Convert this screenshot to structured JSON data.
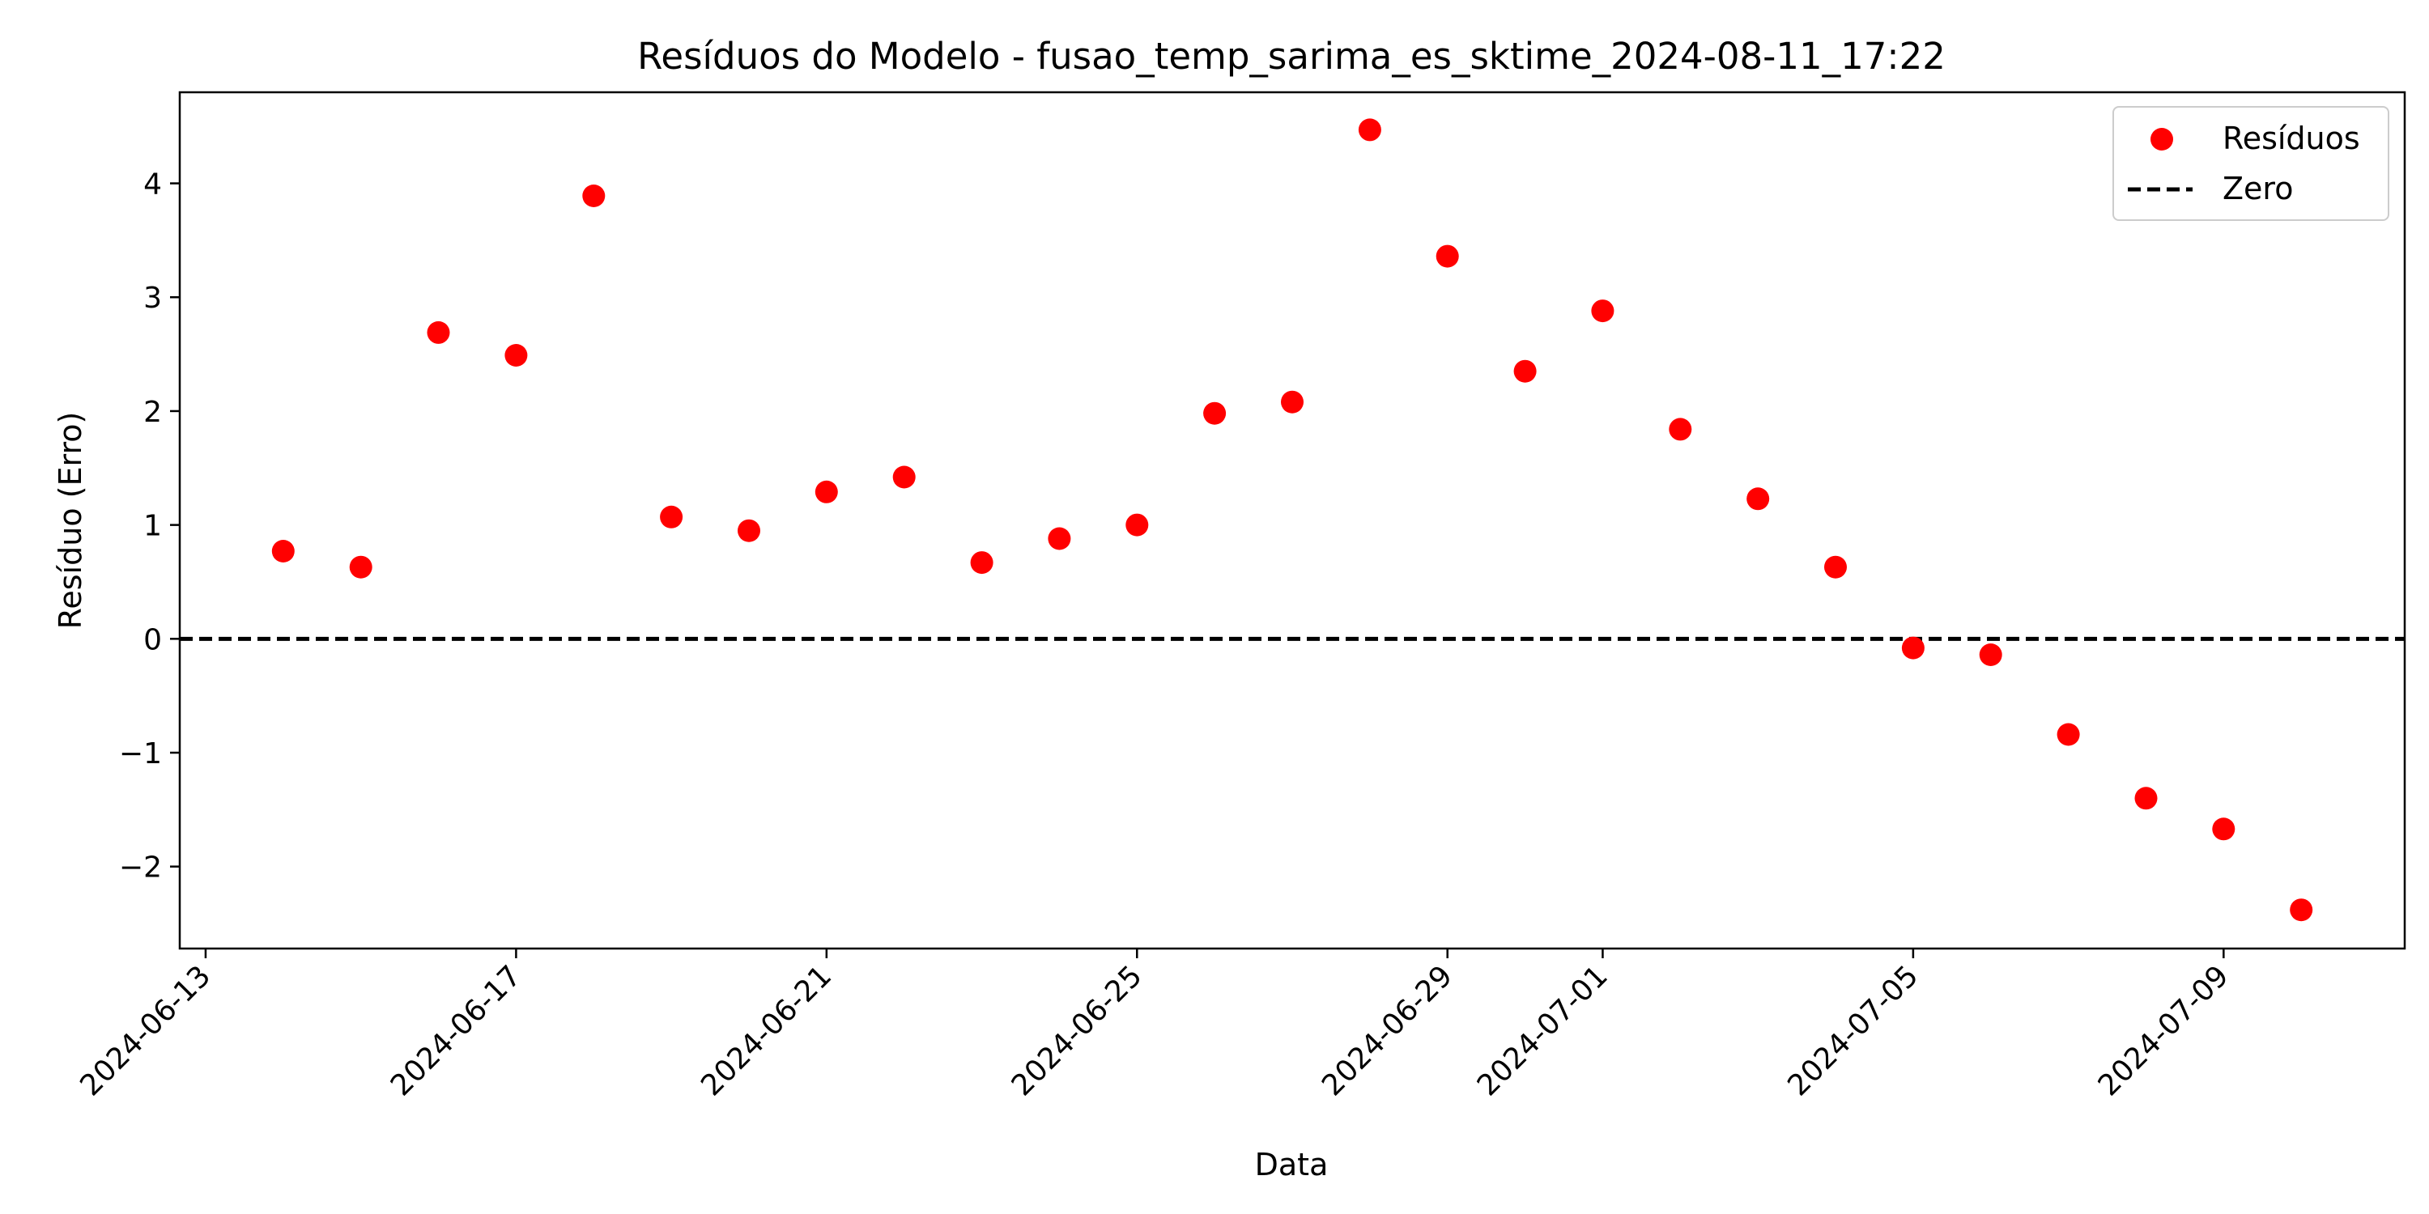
{
  "chart_data": {
    "type": "scatter",
    "title": "Resíduos do Modelo - fusao_temp_sarima_es_sktime_2024-08-11_17:22",
    "xlabel": "Data",
    "ylabel": "Resíduo (Erro)",
    "xlim": [
      "2024-06-12T16:00",
      "2024-07-11T08:00"
    ],
    "ylim": [
      -2.72,
      4.8
    ],
    "grid": false,
    "legend_position": "top-right",
    "x_ticks": [
      "2024-06-13",
      "2024-06-17",
      "2024-06-21",
      "2024-06-25",
      "2024-06-29",
      "2024-07-01",
      "2024-07-05",
      "2024-07-09"
    ],
    "y_ticks": [
      -2,
      -1,
      0,
      1,
      2,
      3,
      4
    ],
    "series": [
      {
        "name": "Resíduos",
        "color": "#ff0000",
        "marker": "circle",
        "x": [
          "2024-06-14",
          "2024-06-15",
          "2024-06-16",
          "2024-06-17",
          "2024-06-18",
          "2024-06-19",
          "2024-06-20",
          "2024-06-21",
          "2024-06-22",
          "2024-06-23",
          "2024-06-24",
          "2024-06-25",
          "2024-06-26",
          "2024-06-27",
          "2024-06-28",
          "2024-06-29",
          "2024-06-30",
          "2024-07-01",
          "2024-07-02",
          "2024-07-03",
          "2024-07-04",
          "2024-07-05",
          "2024-07-06",
          "2024-07-07",
          "2024-07-08",
          "2024-07-09",
          "2024-07-10"
        ],
        "y": [
          0.77,
          0.63,
          2.69,
          2.49,
          3.89,
          1.07,
          0.95,
          1.29,
          1.42,
          0.67,
          0.88,
          1.0,
          1.98,
          2.08,
          4.47,
          3.36,
          2.35,
          2.88,
          1.84,
          1.23,
          0.63,
          -0.08,
          -0.14,
          -0.84,
          -1.4,
          -1.67,
          -2.38
        ]
      }
    ],
    "reference_line": {
      "name": "Zero",
      "y": 0,
      "color": "#000000",
      "style": "dashed"
    }
  }
}
